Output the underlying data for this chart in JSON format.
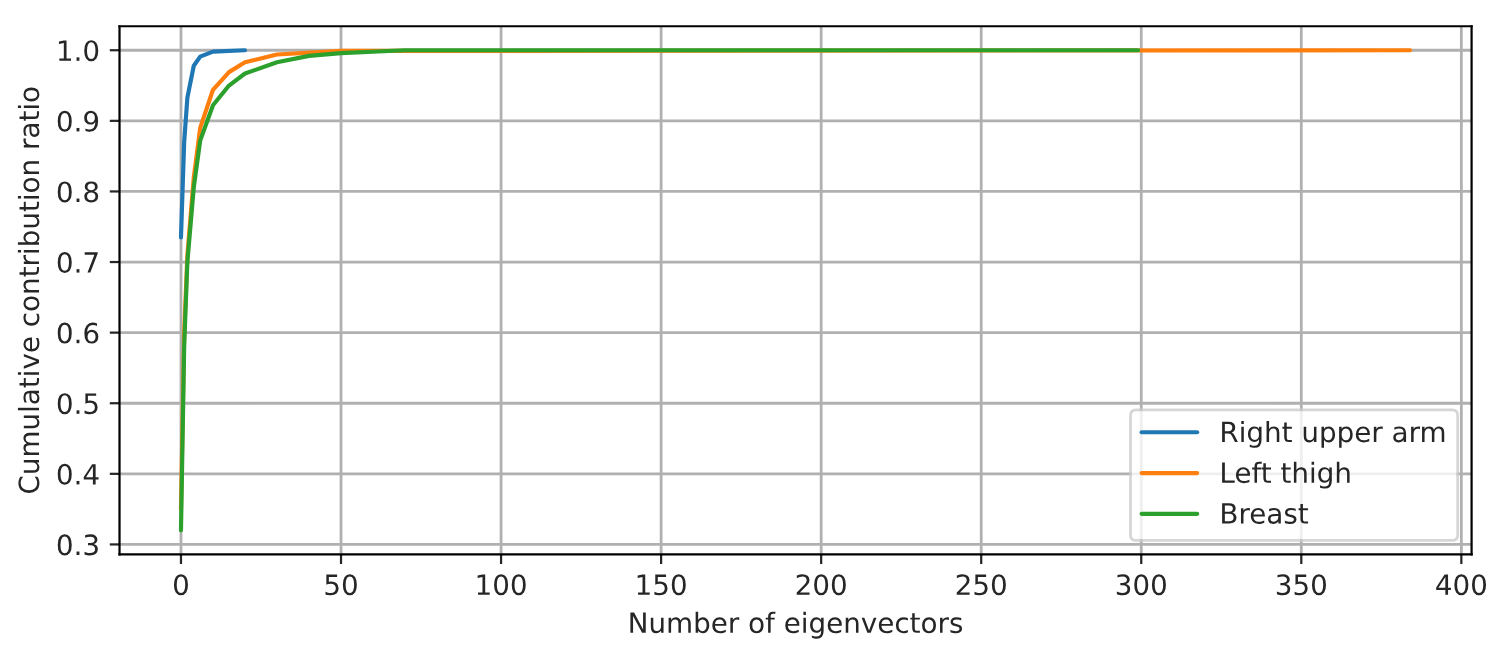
{
  "chart_data": {
    "type": "line",
    "xlabel": "Number of eigenvectors",
    "ylabel": "Cumulative contribution ratio",
    "xlim": [
      -19.2,
      403.2
    ],
    "ylim": [
      0.286,
      1.034
    ],
    "xticks": [
      0,
      50,
      100,
      150,
      200,
      250,
      300,
      350,
      400
    ],
    "yticks": [
      {
        "value": 0.3,
        "label": "0.3"
      },
      {
        "value": 0.4,
        "label": "0.4"
      },
      {
        "value": 0.5,
        "label": "0.5"
      },
      {
        "value": 0.6,
        "label": "0.6"
      },
      {
        "value": 0.7,
        "label": "0.7"
      },
      {
        "value": 0.8,
        "label": "0.8"
      },
      {
        "value": 0.9,
        "label": "0.9"
      },
      {
        "value": 1.0,
        "label": "1.0"
      }
    ],
    "grid": true,
    "legend": "bottom right",
    "series": [
      {
        "name": "Right upper arm",
        "color": "#1f77b4",
        "x": [
          0,
          1,
          2,
          4,
          6,
          10,
          20
        ],
        "values": [
          0.735,
          0.87,
          0.933,
          0.978,
          0.991,
          0.998,
          1.0
        ]
      },
      {
        "name": "Left thigh",
        "color": "#ff7f0e",
        "x": [
          0,
          1,
          2,
          4,
          6,
          10,
          15,
          20,
          30,
          50,
          384
        ],
        "values": [
          0.35,
          0.6,
          0.71,
          0.82,
          0.89,
          0.944,
          0.969,
          0.983,
          0.994,
          0.999,
          1.0
        ]
      },
      {
        "name": "Breast",
        "color": "#2ca02c",
        "x": [
          0,
          1,
          2,
          4,
          6,
          10,
          15,
          20,
          30,
          40,
          50,
          70,
          299
        ],
        "values": [
          0.32,
          0.58,
          0.7,
          0.806,
          0.872,
          0.922,
          0.95,
          0.967,
          0.983,
          0.992,
          0.996,
          1.0,
          1.0
        ]
      }
    ]
  }
}
